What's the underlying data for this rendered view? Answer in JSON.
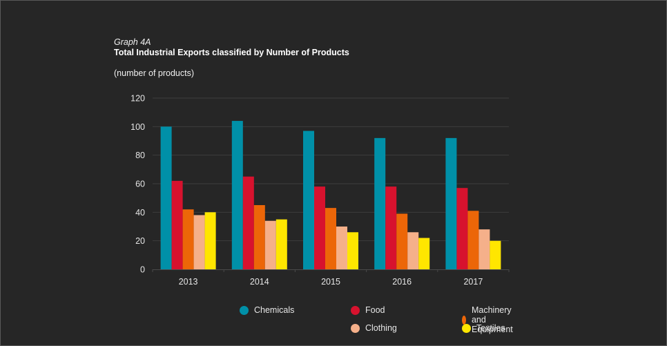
{
  "header": {
    "graph_label": "Graph 4A",
    "title": "Total Industrial Exports classified by Number of Products",
    "unit": "(number of products)"
  },
  "chart_data": {
    "type": "bar",
    "title": "Total Industrial Exports classified by Number of Products",
    "subtitle": "Graph 4A",
    "xlabel": "",
    "ylabel": "(number of products)",
    "categories": [
      "2013",
      "2014",
      "2015",
      "2016",
      "2017"
    ],
    "ylim": [
      0,
      120
    ],
    "yticks": [
      0,
      20,
      40,
      60,
      80,
      100,
      120
    ],
    "grid": true,
    "legend_position": "bottom",
    "series": [
      {
        "name": "Chemicals",
        "color": "#0090a8",
        "values": [
          100,
          104,
          97,
          92,
          92
        ]
      },
      {
        "name": "Food",
        "color": "#d7122e",
        "values": [
          62,
          65,
          58,
          58,
          57
        ]
      },
      {
        "name": "Machinery and Equipment",
        "color": "#ec6608",
        "values": [
          42,
          45,
          43,
          39,
          41
        ]
      },
      {
        "name": "Clothing",
        "color": "#f5b08a",
        "values": [
          38,
          34,
          30,
          26,
          28
        ]
      },
      {
        "name": "Textiles",
        "color": "#ffe600",
        "values": [
          40,
          35,
          26,
          22,
          20
        ]
      }
    ]
  },
  "colors": {
    "background": "#262626",
    "gridline": "#3d3d3d",
    "axis": "#4a4a4a"
  }
}
